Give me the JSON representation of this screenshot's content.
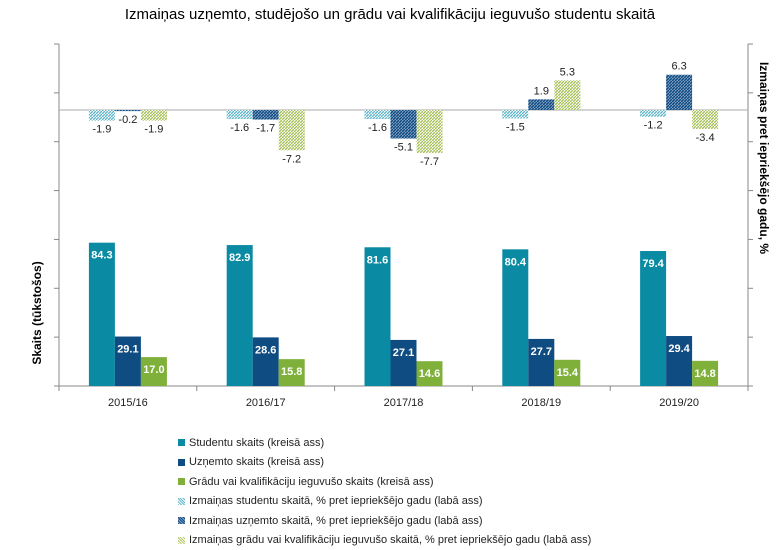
{
  "chart_data": {
    "type": "bar",
    "title": "Izmaiņas uzņemto, studējošo un grādu vai kvalifikāciju ieguvušo studentu skaitā",
    "ylabel_left": "Skaits (tūkstošos)",
    "ylabel_right": "Izmaiņas pret iepriekšējo gadu, %",
    "categories": [
      "2015/16",
      "2016/17",
      "2017/18",
      "2018/19",
      "2019/20"
    ],
    "series": [
      {
        "name": "Studentu skaits (kreisā ass)",
        "values": [
          84.3,
          82.9,
          81.6,
          80.4,
          79.4
        ],
        "axis": "left",
        "color": "#0a8ba3"
      },
      {
        "name": "Uzņemto skaits (kreisā ass)",
        "values": [
          29.1,
          28.6,
          27.1,
          27.7,
          29.4
        ],
        "axis": "left",
        "color": "#0f4c81"
      },
      {
        "name": "Grādu vai kvalifikāciju ieguvušo skaits (kreisā ass)",
        "values": [
          17.0,
          15.8,
          14.6,
          15.4,
          14.8
        ],
        "axis": "left",
        "color": "#7fb03a"
      },
      {
        "name": "Izmaiņas studentu skaitā, % pret iepriekšējo gadu (labā ass)",
        "values": [
          -1.9,
          -1.6,
          -1.6,
          -1.5,
          -1.2
        ],
        "axis": "right",
        "color": "#5fb7c9"
      },
      {
        "name": "Izmaiņas uzņemto skaitā, % pret iepriekšējo gadu (labā ass)",
        "values": [
          -0.2,
          -1.7,
          -5.1,
          1.9,
          6.3
        ],
        "axis": "right",
        "color": "#0f4c81"
      },
      {
        "name": "Izmaiņas grādu vai kvalifikāciju ieguvušo skaitā, % pret iepriekšējo gadu (labā ass)",
        "values": [
          -1.9,
          -7.2,
          -7.7,
          5.3,
          -3.4
        ],
        "axis": "right",
        "color": "#b5cc6e"
      }
    ],
    "legend_position": "bottom",
    "grid": false
  }
}
